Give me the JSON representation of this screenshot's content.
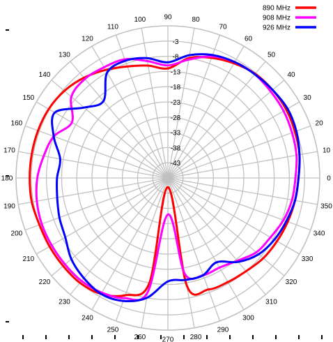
{
  "chart_data": {
    "type": "polar-line",
    "title": "",
    "angle_unit": "deg",
    "angle_ticks": [
      "0",
      "10",
      "20",
      "30",
      "40",
      "50",
      "60",
      "70",
      "80",
      "90",
      "100",
      "110",
      "120",
      "130",
      "140",
      "150",
      "160",
      "170",
      "180",
      "190",
      "200",
      "210",
      "220",
      "230",
      "240",
      "250",
      "260",
      "270",
      "280",
      "290",
      "300",
      "310",
      "320",
      "330",
      "340",
      "350"
    ],
    "radial_ticks": [
      "-3",
      "-8",
      "-13",
      "-18",
      "-23",
      "-28",
      "-33",
      "-38",
      "-43"
    ],
    "radial_range": [
      -48,
      2
    ],
    "grid": true,
    "legend": "top-right",
    "series": [
      {
        "name": "890 MHz",
        "color": "#ff0000",
        "angles": [
          0,
          10,
          20,
          30,
          40,
          50,
          60,
          70,
          80,
          90,
          100,
          110,
          120,
          130,
          140,
          150,
          160,
          170,
          180,
          190,
          200,
          210,
          220,
          230,
          240,
          250,
          260,
          270,
          280,
          290,
          300,
          310,
          320,
          330,
          340,
          350
        ],
        "values": [
          -5,
          -4,
          -3.5,
          -3,
          -3,
          -3.3,
          -4.5,
          -6,
          -8,
          -12,
          -10.5,
          -9,
          -7,
          -5,
          -3.5,
          -2.7,
          -2.5,
          -2.5,
          -2.5,
          -2.5,
          -3,
          -3,
          -3,
          -3,
          -4,
          -7,
          -13,
          -45,
          -12,
          -9,
          -8.5,
          -8,
          -7,
          -6.5,
          -6,
          -5.5
        ]
      },
      {
        "name": "908 MHz",
        "color": "#ff00ff",
        "angles": [
          0,
          10,
          20,
          30,
          40,
          50,
          60,
          70,
          80,
          90,
          100,
          110,
          120,
          130,
          140,
          150,
          160,
          170,
          180,
          190,
          200,
          210,
          220,
          230,
          240,
          250,
          260,
          270,
          280,
          290,
          300,
          310,
          320,
          330,
          340,
          350
        ],
        "values": [
          -6,
          -5,
          -4.5,
          -4,
          -3.8,
          -3.5,
          -4,
          -5.5,
          -8.5,
          -11,
          -9,
          -6.5,
          -6,
          -5.5,
          -6.5,
          -11.5,
          -8,
          -6.5,
          -5,
          -4.2,
          -3.8,
          -3.8,
          -3.8,
          -3.8,
          -4.5,
          -6,
          -10,
          -36,
          -16,
          -14,
          -14,
          -12.5,
          -10,
          -9,
          -7.5,
          -6.5
        ]
      },
      {
        "name": "926 MHz",
        "color": "#0000ff",
        "angles": [
          0,
          10,
          20,
          30,
          40,
          50,
          60,
          70,
          80,
          90,
          100,
          110,
          120,
          130,
          140,
          150,
          160,
          170,
          180,
          190,
          200,
          210,
          220,
          230,
          240,
          250,
          260,
          270,
          280,
          290,
          300,
          310,
          320,
          330,
          340,
          350
        ],
        "values": [
          -5,
          -4,
          -3,
          -2.5,
          -3,
          -3.5,
          -4,
          -5,
          -7,
          -10,
          -8,
          -7,
          -8,
          -15,
          -12,
          -5,
          -8,
          -12,
          -11.5,
          -11,
          -10,
          -9,
          -6.5,
          -5,
          -4,
          -5,
          -8,
          -14,
          -14,
          -14,
          -16,
          -12,
          -9,
          -7.5,
          -6.5,
          -5.5
        ]
      }
    ]
  }
}
